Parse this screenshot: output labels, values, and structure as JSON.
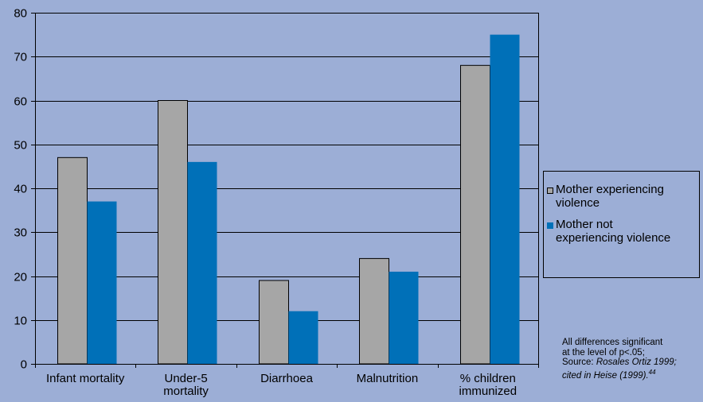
{
  "chart_data": {
    "type": "bar",
    "categories": [
      "Infant mortality",
      "Under-5 mortality",
      "Diarrhoea",
      "Malnutrition",
      "% children immunized"
    ],
    "category_lines": [
      [
        "Infant mortality"
      ],
      [
        "Under-5",
        "mortality"
      ],
      [
        "Diarrhoea"
      ],
      [
        "Malnutrition"
      ],
      [
        "% children",
        "immunized"
      ]
    ],
    "series": [
      {
        "name": "Mother experiencing violence",
        "name_lines": [
          "Mother experiencing",
          "violence"
        ],
        "values": [
          47,
          60,
          19,
          24,
          68
        ],
        "color": "#a6a6a6"
      },
      {
        "name": "Mother not experiencing violence",
        "name_lines": [
          "Mother not",
          "experiencing violence"
        ],
        "values": [
          37,
          46,
          12,
          21,
          75
        ],
        "color": "#0070b8"
      }
    ],
    "yticks": [
      0,
      10,
      20,
      30,
      40,
      50,
      60,
      70,
      80
    ],
    "ylim": [
      0,
      80
    ],
    "grid": true,
    "legend_position": "right"
  },
  "note": {
    "line1": "All differences significant",
    "line2": "at the level of p<.05;",
    "line3_prefix": "Source: ",
    "line3_italic": "Rosales Ortiz 1999;",
    "line4_italic": "cited in Heise (1999).",
    "sup": "44"
  },
  "colors": {
    "background": "#9caed6",
    "grid": "#000000",
    "bar_outline": "#000000"
  }
}
